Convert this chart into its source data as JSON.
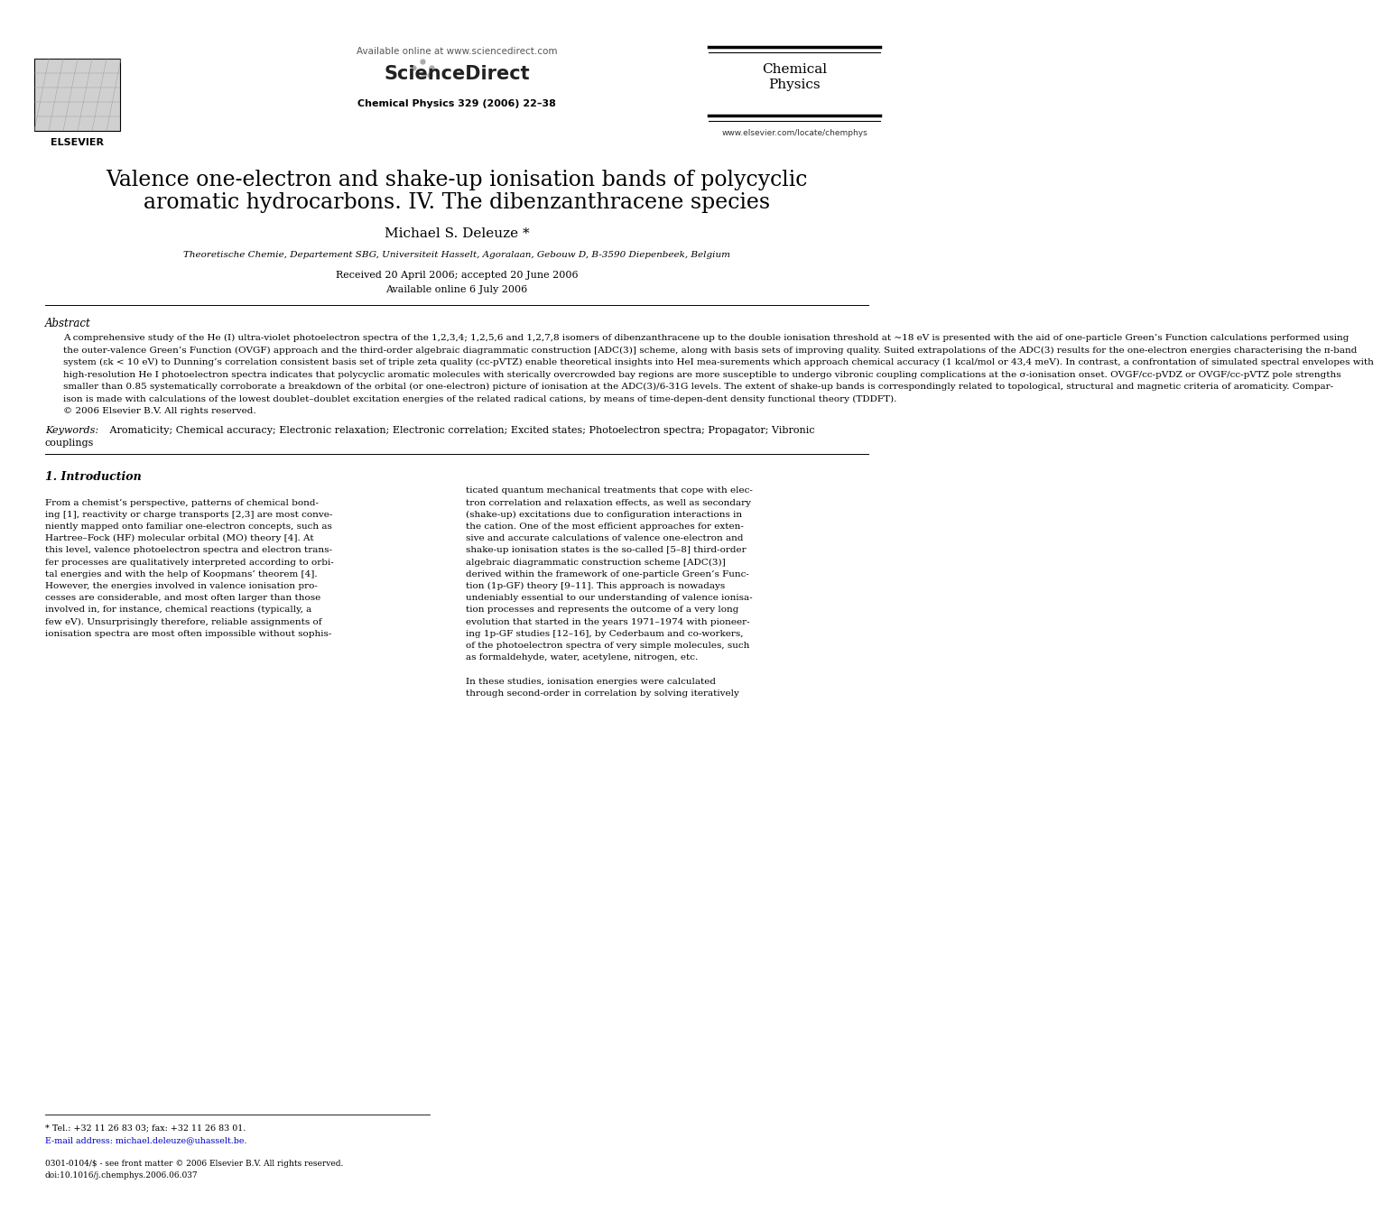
{
  "page_bg": "#ffffff",
  "header_available_online": "Available online at www.sciencedirect.com",
  "header_sciencedirect": "ScienceDirect",
  "header_journal_line1": "Chemical",
  "header_journal_line2": "Physics",
  "header_journal_info": "Chemical Physics 329 (2006) 22–38",
  "header_url": "www.elsevier.com/locate/chemphys",
  "title_line1": "Valence one-electron and shake-up ionisation bands of polycyclic",
  "title_line2": "aromatic hydrocarbons. IV. The dibenzanthracene species",
  "author": "Michael S. Deleuze *",
  "affiliation": "Theoretische Chemie, Departement SBG, Universiteit Hasselt, Agoralaan, Gebouw D, B-3590 Diepenbeek, Belgium",
  "received": "Received 20 April 2006; accepted 20 June 2006",
  "available_online": "Available online 6 July 2006",
  "abstract_label": "Abstract",
  "abstract_lines": [
    "A comprehensive study of the He (I) ultra-violet photoelectron spectra of the 1,2,3,4; 1,2,5,6 and 1,2,7,8 isomers of dibenzanthracene up to the double ionisation threshold at ~18 eV is presented with the aid of one-particle Green’s Function calculations performed using",
    "the outer-valence Green’s Function (OVGF) approach and the third-order algebraic diagrammatic construction [ADC(3)] scheme, along with basis sets of improving quality. Suited extrapolations of the ADC(3) results for the one-electron energies characterising the π-band",
    "system (εk < 10 eV) to Dunning’s correlation consistent basis set of triple zeta quality (cc-pVTZ) enable theoretical insights into HeI mea-surements which approach chemical accuracy (1 kcal/mol or 43,4 meV). In contrast, a confrontation of simulated spectral envelopes with",
    "high-resolution He I photoelectron spectra indicates that polycyclic aromatic molecules with sterically overcrowded bay regions are more susceptible to undergo vibronic coupling complications at the σ-ionisation onset. OVGF/cc-pVDZ or OVGF/cc-pVTZ pole strengths",
    "smaller than 0.85 systematically corroborate a breakdown of the orbital (or one-electron) picture of ionisation at the ADC(3)/6-31G levels. The extent of shake-up bands is correspondingly related to topological, structural and magnetic criteria of aromaticity. Compar-",
    "ison is made with calculations of the lowest doublet–doublet excitation energies of the related radical cations, by means of time-depen-dent density functional theory (TDDFT).",
    "© 2006 Elsevier B.V. All rights reserved."
  ],
  "keywords_italic": "Keywords:",
  "keywords_text": " Aromaticity; Chemical accuracy; Electronic relaxation; Electronic correlation; Excited states; Photoelectron spectra; Propagator; Vibronic",
  "keywords_line2": "couplings",
  "section1_title": "1. Introduction",
  "intro_left_lines": [
    "From a chemist’s perspective, patterns of chemical bond-",
    "ing [1], reactivity or charge transports [2,3] are most conve-",
    "niently mapped onto familiar one-electron concepts, such as",
    "Hartree–Fock (HF) molecular orbital (MO) theory [4]. At",
    "this level, valence photoelectron spectra and electron trans-",
    "fer processes are qualitatively interpreted according to orbi-",
    "tal energies and with the help of Koopmans’ theorem [4].",
    "However, the energies involved in valence ionisation pro-",
    "cesses are considerable, and most often larger than those",
    "involved in, for instance, chemical reactions (typically, a",
    "few eV). Unsurprisingly therefore, reliable assignments of",
    "ionisation spectra are most often impossible without sophis-"
  ],
  "intro_right_lines": [
    "ticated quantum mechanical treatments that cope with elec-",
    "tron correlation and relaxation effects, as well as secondary",
    "(shake-up) excitations due to configuration interactions in",
    "the cation. One of the most efficient approaches for exten-",
    "sive and accurate calculations of valence one-electron and",
    "shake-up ionisation states is the so-called [5–8] third-order",
    "algebraic diagrammatic construction scheme [ADC(3)]",
    "derived within the framework of one-particle Green’s Func-",
    "tion (1p-GF) theory [9–11]. This approach is nowadays",
    "undeniably essential to our understanding of valence ionisa-",
    "tion processes and represents the outcome of a very long",
    "evolution that started in the years 1971–1974 with pioneer-",
    "ing 1p-GF studies [12–16], by Cederbaum and co-workers,",
    "of the photoelectron spectra of very simple molecules, such",
    "as formaldehyde, water, acetylene, nitrogen, etc.",
    "",
    "In these studies, ionisation energies were calculated",
    "through second-order in correlation by solving iteratively"
  ],
  "footnote_star": "* Tel.: +32 11 26 83 03; fax: +32 11 26 83 01.",
  "footnote_email": "E-mail address: michael.deleuze@uhasselt.be.",
  "footnote_issn": "0301-0104/$ - see front matter © 2006 Elsevier B.V. All rights reserved.",
  "footnote_doi": "doi:10.1016/j.chemphys.2006.06.037",
  "elsevier_text": "ELSEVIER"
}
